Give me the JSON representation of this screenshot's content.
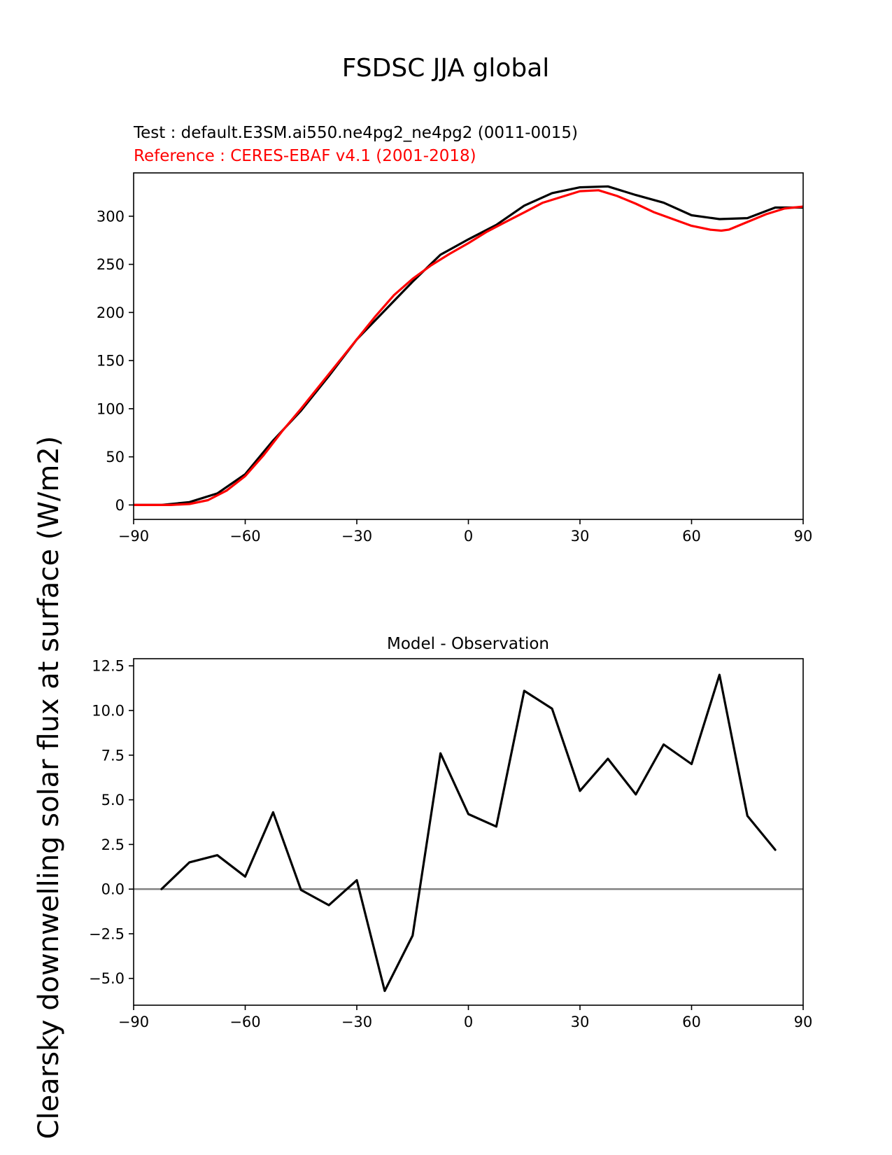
{
  "figure": {
    "title": "FSDSC JJA global",
    "ylabel": "Clearsky downwelling solar flux at surface (W/m2)"
  },
  "colors": {
    "test": "#000000",
    "reference": "#ff0000",
    "zero_line": "#808080",
    "axes": "#000000",
    "background": "#ffffff"
  },
  "chart_data": [
    {
      "type": "line",
      "test_label": "Test : default.E3SM.ai550.ne4pg2_ne4pg2 (0011-0015)",
      "reference_label": "Reference : CERES-EBAF v4.1 (2001-2018)",
      "xlim": [
        -90,
        90
      ],
      "ylim": [
        -15,
        345
      ],
      "xticks": [
        -90,
        -60,
        -30,
        0,
        30,
        60,
        90
      ],
      "yticks": [
        0,
        50,
        100,
        150,
        200,
        250,
        300
      ],
      "xtick_labels": [
        "−90",
        "−60",
        "−30",
        "0",
        "30",
        "60",
        "90"
      ],
      "ytick_labels": [
        "0",
        "50",
        "100",
        "150",
        "200",
        "250",
        "300"
      ],
      "series": [
        {
          "role": "test",
          "color": "#000000",
          "x": [
            -90,
            -82.5,
            -75,
            -67.5,
            -60,
            -52.5,
            -45,
            -37.5,
            -30,
            -22.5,
            -15,
            -7.5,
            0,
            7.5,
            15,
            22.5,
            30,
            37.5,
            45,
            52.5,
            60,
            67.5,
            75,
            82.5,
            90
          ],
          "y": [
            0,
            0,
            3,
            12,
            32,
            67,
            98,
            134,
            172,
            202,
            232,
            260,
            276,
            291,
            311,
            324,
            330,
            331,
            322,
            314,
            301,
            297,
            298,
            309,
            309
          ]
        },
        {
          "role": "reference",
          "color": "#ff0000",
          "x": [
            -90,
            -85,
            -80,
            -75,
            -70,
            -65,
            -60,
            -55,
            -50,
            -45,
            -40,
            -35,
            -30,
            -25,
            -20,
            -15,
            -10,
            -5,
            0,
            5,
            10,
            15,
            20,
            25,
            30,
            35,
            40,
            45,
            50,
            55,
            60,
            65,
            68,
            70,
            75,
            80,
            85,
            90
          ],
          "y": [
            0,
            0,
            0,
            1,
            5,
            15,
            30,
            52,
            77,
            100,
            124,
            148,
            172,
            196,
            218,
            235,
            249,
            261,
            272,
            284,
            294,
            304,
            314,
            320,
            326,
            327,
            321,
            313,
            304,
            297,
            290,
            286,
            285,
            286,
            294,
            302,
            308,
            310
          ]
        }
      ]
    },
    {
      "type": "line",
      "title": "Model - Observation",
      "xlim": [
        -90,
        90
      ],
      "ylim": [
        -6.5,
        12.9
      ],
      "xticks": [
        -90,
        -60,
        -30,
        0,
        30,
        60,
        90
      ],
      "yticks": [
        -5,
        -2.5,
        0,
        2.5,
        5,
        7.5,
        10,
        12.5
      ],
      "xtick_labels": [
        "−90",
        "−60",
        "−30",
        "0",
        "30",
        "60",
        "90"
      ],
      "ytick_labels": [
        "−5.0",
        "−2.5",
        "0.0",
        "2.5",
        "5.0",
        "7.5",
        "10.0",
        "12.5"
      ],
      "zero_line": 0,
      "series": [
        {
          "role": "difference",
          "color": "#000000",
          "x": [
            -82.5,
            -75,
            -67.5,
            -60,
            -52.5,
            -45,
            -37.5,
            -30,
            -22.5,
            -15,
            -7.5,
            0,
            7.5,
            15,
            22.5,
            30,
            37.5,
            45,
            52.5,
            60,
            67.5,
            75,
            82.5
          ],
          "y": [
            0.0,
            1.5,
            1.9,
            0.7,
            4.3,
            -0.05,
            -0.9,
            0.5,
            -5.7,
            -2.6,
            7.6,
            4.2,
            3.5,
            11.1,
            10.1,
            5.5,
            7.3,
            5.3,
            8.1,
            7.0,
            12.0,
            4.1,
            2.2
          ]
        }
      ]
    }
  ]
}
